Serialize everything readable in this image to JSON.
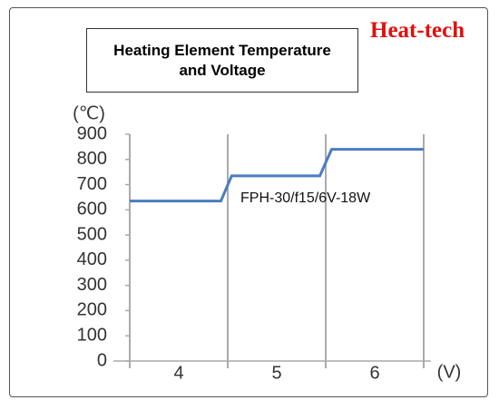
{
  "brand": "Heat-tech",
  "chart_data": {
    "type": "line",
    "title": "Heating Element Temperature and Voltage",
    "y_label": "(℃)",
    "x_label": "(V)",
    "annotation": "FPH-30/f15/6V-18W",
    "x": [
      3.5,
      4.43,
      4.54,
      5.44,
      5.56,
      6.5
    ],
    "series": [
      {
        "name": "FPH-30/f15/6V-18W",
        "color": "#4a7cc0",
        "values": [
          635,
          635,
          735,
          735,
          840,
          840
        ]
      }
    ],
    "xlim": [
      3.5,
      6.5
    ],
    "xticks": [
      4,
      5,
      6
    ],
    "ylim": [
      0,
      900
    ],
    "yticks": [
      0,
      100,
      200,
      300,
      400,
      500,
      600,
      700,
      800,
      900
    ],
    "grid": true
  }
}
